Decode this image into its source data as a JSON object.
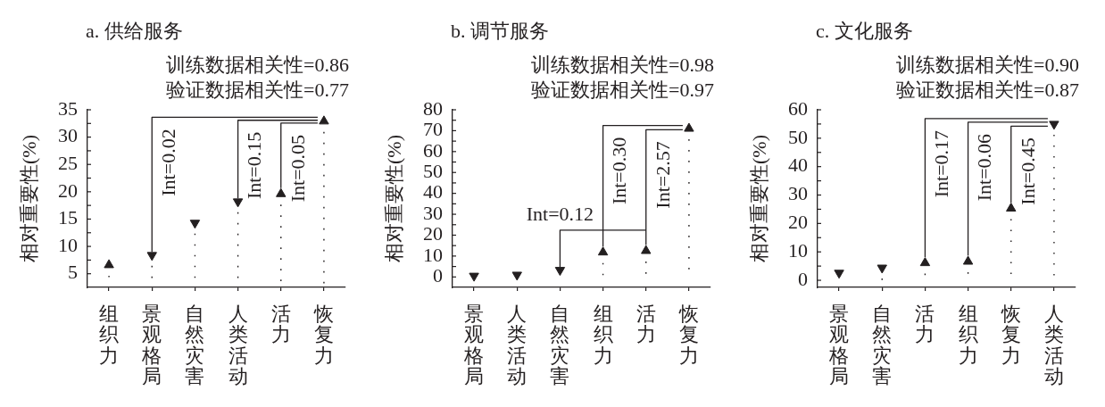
{
  "chart_data": [
    {
      "type": "lollipop",
      "title": "a. 供给服务",
      "ylabel": "相对重要性(%)",
      "categories": [
        "组织力",
        "景观格局",
        "自然灾害",
        "人类活动",
        "活力",
        "恢复力"
      ],
      "series": [
        {
          "color": "#231f20",
          "marker": "triangle",
          "values": [
            6.6,
            null,
            null,
            null,
            19.6,
            32.9
          ]
        },
        {
          "color": "#231f20",
          "marker": "triangle-down",
          "values": [
            null,
            8.4,
            14.3,
            18.2,
            null,
            null
          ]
        }
      ],
      "ylim": [
        2.5,
        35
      ],
      "yticks": [
        5,
        {
          "value": 7.5,
          "label": null
        },
        10,
        {
          "value": 12.5,
          "label": null
        },
        15,
        {
          "value": 17.5,
          "label": null
        },
        20,
        {
          "value": 22.5,
          "label": null
        },
        25,
        {
          "value": 27.5,
          "label": null
        },
        30,
        {
          "value": 32.5,
          "label": null
        },
        35
      ],
      "line_style": "dotted",
      "annotations": [
        "训练数据相关性=0.86",
        "验证数据相关性=0.77",
        {
          "text": "Int=0.02",
          "x": "景观格局",
          "y": 8.4
        },
        {
          "text": "Int=0.15",
          "x": "人类活动",
          "y": 18.2
        },
        {
          "text": "Int=0.05",
          "x": "活力",
          "y": 19.6
        }
      ]
    },
    {
      "type": "lollipop",
      "title": "b. 调节服务",
      "ylabel": "相对重要性(%)",
      "categories": [
        "景观格局",
        "人类活动",
        "自然灾害",
        "组织力",
        "活力",
        "恢复力"
      ],
      "series": [
        {
          "color": "#231f20",
          "marker": "triangle",
          "values": [
            null,
            null,
            null,
            11.8,
            12.5,
            71.0
          ]
        },
        {
          "color": "#231f20",
          "marker": "triangle-down",
          "values": [
            0.5,
            1.0,
            3.3,
            null,
            null,
            null
          ]
        }
      ],
      "ylim": [
        -5,
        80
      ],
      "yticks": [
        0,
        {
          "value": 5,
          "label": null
        },
        10,
        {
          "value": 15,
          "label": null
        },
        20,
        {
          "value": 25,
          "label": null
        },
        30,
        {
          "value": 35,
          "label": null
        },
        40,
        {
          "value": 45,
          "label": null
        },
        50,
        {
          "value": 55,
          "label": null
        },
        60,
        {
          "value": 65,
          "label": null
        },
        70,
        {
          "value": 75,
          "label": null
        },
        80
      ],
      "line_style": "dotted",
      "annotations": [
        "训练数据相关性=0.98",
        "验证数据相关性=0.97",
        {
          "text": "Int=0.12",
          "x": "自然灾害",
          "y": 3.3
        },
        {
          "text": "Int=0.30",
          "x": "组织力",
          "y": 11.8
        },
        {
          "text": "Int=2.57",
          "x": "活力",
          "y": 12.5
        }
      ]
    },
    {
      "type": "lollipop",
      "title": "c. 文化服务",
      "ylabel": "相对重要性(%)",
      "categories": [
        "景观格局",
        "自然灾害",
        "活力",
        "组织力",
        "恢复力",
        "人类活动"
      ],
      "series": [
        {
          "color": "#231f20",
          "marker": "triangle",
          "values": [
            null,
            null,
            6.1,
            6.6,
            25.3,
            null
          ]
        },
        {
          "color": "#231f20",
          "marker": "triangle-down",
          "values": [
            2.6,
            4.4,
            null,
            null,
            null,
            55.0
          ]
        }
      ],
      "ylim": [
        -2.5,
        60
      ],
      "yticks": [
        0,
        {
          "value": 5,
          "label": null
        },
        10,
        {
          "value": 15,
          "label": null
        },
        20,
        {
          "value": 25,
          "label": null
        },
        30,
        {
          "value": 35,
          "label": null
        },
        40,
        {
          "value": 45,
          "label": null
        },
        50,
        {
          "value": 55,
          "label": null
        },
        60
      ],
      "line_style": "dotted",
      "annotations": [
        "训练数据相关性=0.90",
        "验证数据相关性=0.87",
        {
          "text": "Int=0.17",
          "x": "活力",
          "y": 6.1
        },
        {
          "text": "Int=0.06",
          "x": "组织力",
          "y": 6.6
        },
        {
          "text": "Int=0.45",
          "x": "恢复力",
          "y": 25.3
        }
      ]
    }
  ]
}
